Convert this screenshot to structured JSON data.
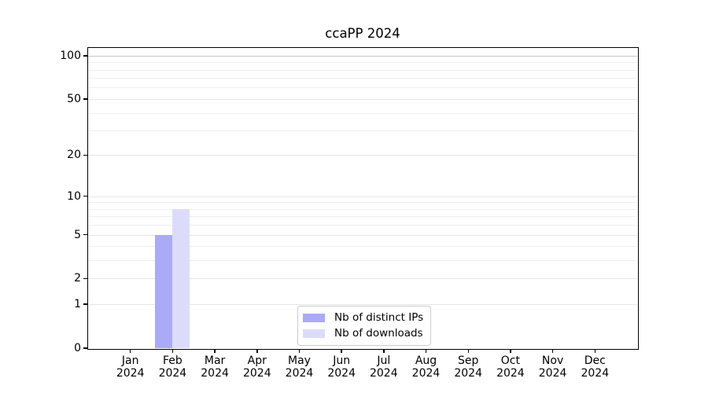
{
  "chart_data": {
    "type": "bar",
    "title": "ccaPP 2024",
    "categories": [
      "Jan 2024",
      "Feb 2024",
      "Mar 2024",
      "Apr 2024",
      "May 2024",
      "Jun 2024",
      "Jul 2024",
      "Aug 2024",
      "Sep 2024",
      "Oct 2024",
      "Nov 2024",
      "Dec 2024"
    ],
    "series": [
      {
        "name": "Nb of distinct IPs",
        "color": "#aaaaf8",
        "values": [
          0,
          5,
          0,
          0,
          0,
          0,
          0,
          0,
          0,
          0,
          0,
          0
        ]
      },
      {
        "name": "Nb of downloads",
        "color": "#dcdcfa",
        "values": [
          0,
          8,
          0,
          0,
          0,
          0,
          0,
          0,
          0,
          0,
          0,
          0
        ]
      }
    ],
    "y_axis": {
      "scale": "log1p",
      "ticks": [
        0,
        1,
        2,
        5,
        10,
        20,
        50,
        100
      ],
      "minor_ticks": [
        3,
        4,
        6,
        7,
        8,
        9,
        30,
        40,
        60,
        70,
        80,
        90
      ],
      "ylim": [
        0,
        113
      ],
      "emphasized_gridline": 100
    },
    "legend": {
      "position": "bottom-center-inside"
    },
    "grid": {
      "minor_color": "#eeeeee",
      "major_color": "#e5e5e5",
      "emphasis_color": "#c8c8c8"
    }
  }
}
